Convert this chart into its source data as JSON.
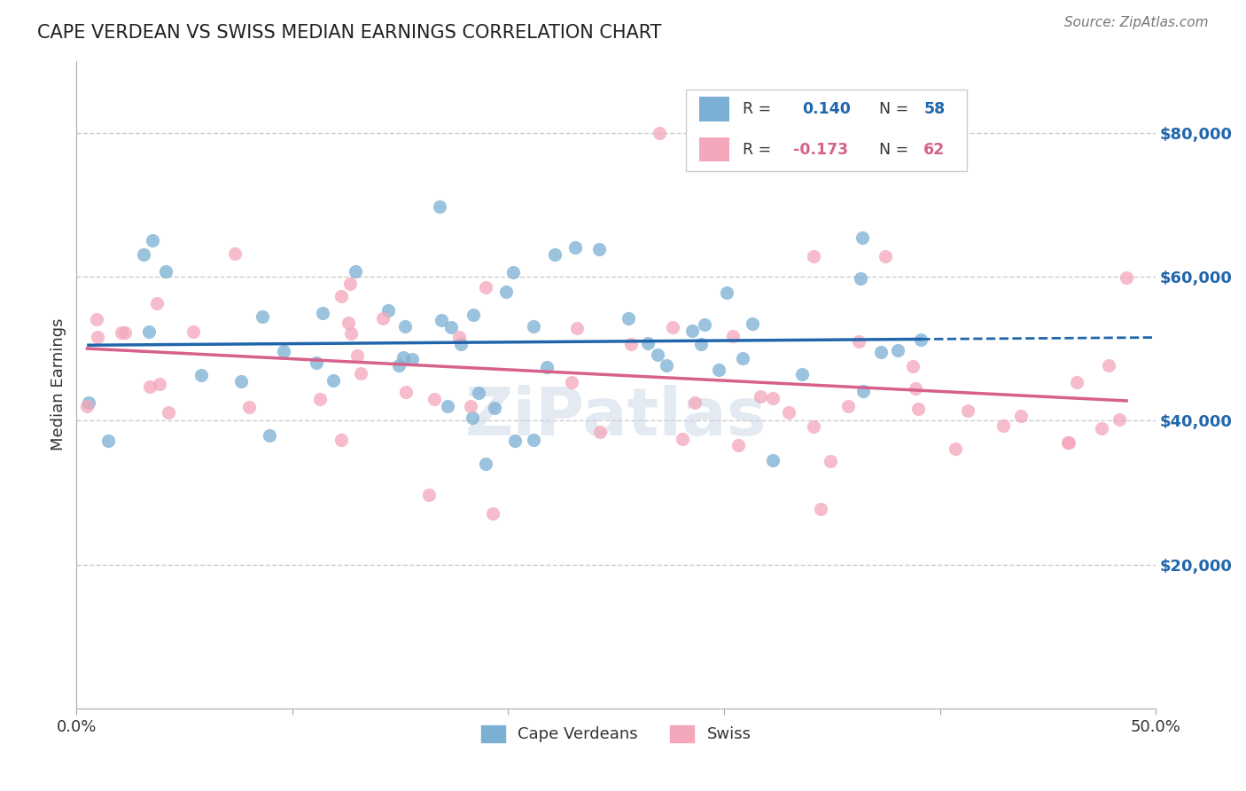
{
  "title": "CAPE VERDEAN VS SWISS MEDIAN EARNINGS CORRELATION CHART",
  "source": "Source: ZipAtlas.com",
  "ylabel": "Median Earnings",
  "y_tick_labels": [
    "$20,000",
    "$40,000",
    "$60,000",
    "$80,000"
  ],
  "y_tick_values": [
    20000,
    40000,
    60000,
    80000
  ],
  "ylim": [
    0,
    90000
  ],
  "xlim": [
    0.0,
    0.5
  ],
  "watermark": "ZiPatlas",
  "cv_color": "#7bafd4",
  "swiss_color": "#f4a6bb",
  "cv_line_color": "#2166ac",
  "swiss_line_color": "#d6618a",
  "background_color": "#ffffff",
  "cv_R": 0.14,
  "cv_N": 58,
  "swiss_R": -0.173,
  "swiss_N": 62
}
